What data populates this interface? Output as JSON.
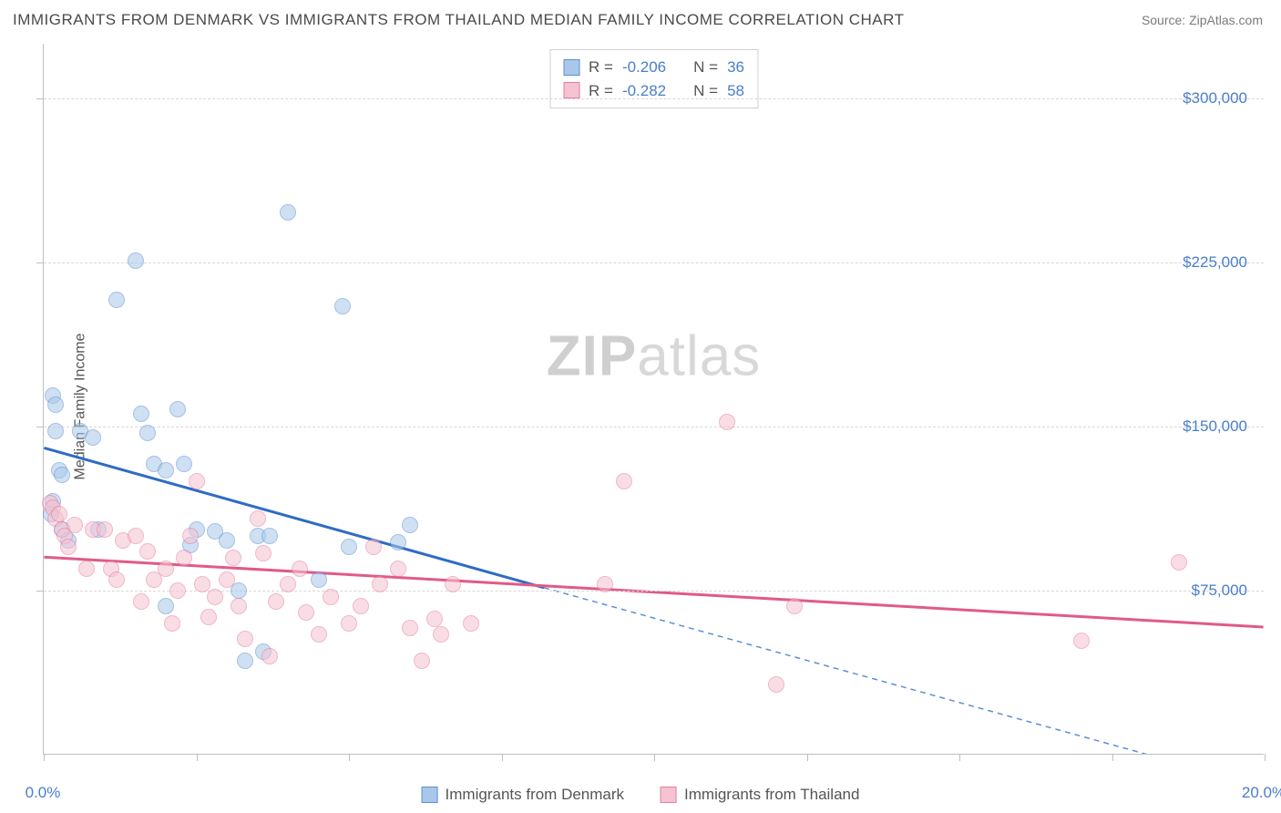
{
  "title": "IMMIGRANTS FROM DENMARK VS IMMIGRANTS FROM THAILAND MEDIAN FAMILY INCOME CORRELATION CHART",
  "source": "Source: ZipAtlas.com",
  "watermark_bold": "ZIP",
  "watermark_rest": "atlas",
  "ylabel": "Median Family Income",
  "chart": {
    "type": "scatter",
    "xlim": [
      0,
      20
    ],
    "ylim": [
      0,
      325000
    ],
    "x_ticks": [
      0,
      2.5,
      5,
      7.5,
      10,
      12.5,
      15,
      17.5,
      20
    ],
    "x_tick_labels": {
      "0": "0.0%",
      "20": "20.0%"
    },
    "y_gridlines": [
      75000,
      150000,
      225000,
      300000
    ],
    "y_tick_labels": {
      "75000": "$75,000",
      "150000": "$150,000",
      "225000": "$225,000",
      "300000": "$300,000"
    },
    "background_color": "#ffffff",
    "grid_color": "#d8d8d8",
    "axis_color": "#bfbfbf",
    "point_radius": 9,
    "point_opacity": 0.55,
    "series": [
      {
        "name": "Immigrants from Denmark",
        "fill_color": "#a9c7ea",
        "stroke_color": "#5c8fd1",
        "line_color": "#2e6cc4",
        "R": "-0.206",
        "N": "36",
        "regression": {
          "x1": 0,
          "y1": 140000,
          "x2": 8.2,
          "y2": 76000,
          "dash_x2": 20,
          "dash_y2": -15000
        },
        "points": [
          [
            0.15,
            164000
          ],
          [
            0.2,
            160000
          ],
          [
            0.2,
            148000
          ],
          [
            0.25,
            130000
          ],
          [
            0.3,
            128000
          ],
          [
            0.15,
            116000
          ],
          [
            0.3,
            103000
          ],
          [
            0.12,
            110000
          ],
          [
            0.4,
            98000
          ],
          [
            0.6,
            148000
          ],
          [
            0.8,
            145000
          ],
          [
            0.9,
            103000
          ],
          [
            1.2,
            208000
          ],
          [
            1.5,
            226000
          ],
          [
            1.6,
            156000
          ],
          [
            1.7,
            147000
          ],
          [
            1.8,
            133000
          ],
          [
            2.0,
            130000
          ],
          [
            2.0,
            68000
          ],
          [
            2.2,
            158000
          ],
          [
            2.3,
            133000
          ],
          [
            2.4,
            96000
          ],
          [
            2.5,
            103000
          ],
          [
            2.8,
            102000
          ],
          [
            3.0,
            98000
          ],
          [
            3.2,
            75000
          ],
          [
            3.3,
            43000
          ],
          [
            3.5,
            100000
          ],
          [
            3.6,
            47000
          ],
          [
            3.7,
            100000
          ],
          [
            4.0,
            248000
          ],
          [
            4.9,
            205000
          ],
          [
            4.5,
            80000
          ],
          [
            5.0,
            95000
          ],
          [
            5.8,
            97000
          ],
          [
            6.0,
            105000
          ]
        ]
      },
      {
        "name": "Immigrants from Thailand",
        "fill_color": "#f5c3d1",
        "stroke_color": "#e77b9f",
        "line_color": "#e05a88",
        "R": "-0.282",
        "N": "58",
        "regression": {
          "x1": 0,
          "y1": 90000,
          "x2": 20,
          "y2": 58000
        },
        "points": [
          [
            0.1,
            115000
          ],
          [
            0.15,
            113000
          ],
          [
            0.2,
            108000
          ],
          [
            0.25,
            110000
          ],
          [
            0.3,
            103000
          ],
          [
            0.35,
            100000
          ],
          [
            0.4,
            95000
          ],
          [
            0.5,
            105000
          ],
          [
            0.7,
            85000
          ],
          [
            0.8,
            103000
          ],
          [
            1.0,
            103000
          ],
          [
            1.1,
            85000
          ],
          [
            1.2,
            80000
          ],
          [
            1.3,
            98000
          ],
          [
            1.5,
            100000
          ],
          [
            1.6,
            70000
          ],
          [
            1.7,
            93000
          ],
          [
            1.8,
            80000
          ],
          [
            2.0,
            85000
          ],
          [
            2.1,
            60000
          ],
          [
            2.2,
            75000
          ],
          [
            2.3,
            90000
          ],
          [
            2.4,
            100000
          ],
          [
            2.5,
            125000
          ],
          [
            2.6,
            78000
          ],
          [
            2.7,
            63000
          ],
          [
            2.8,
            72000
          ],
          [
            3.0,
            80000
          ],
          [
            3.1,
            90000
          ],
          [
            3.2,
            68000
          ],
          [
            3.3,
            53000
          ],
          [
            3.5,
            108000
          ],
          [
            3.6,
            92000
          ],
          [
            3.7,
            45000
          ],
          [
            3.8,
            70000
          ],
          [
            4.0,
            78000
          ],
          [
            4.2,
            85000
          ],
          [
            4.3,
            65000
          ],
          [
            4.5,
            55000
          ],
          [
            4.7,
            72000
          ],
          [
            5.0,
            60000
          ],
          [
            5.2,
            68000
          ],
          [
            5.4,
            95000
          ],
          [
            5.5,
            78000
          ],
          [
            5.8,
            85000
          ],
          [
            6.0,
            58000
          ],
          [
            6.2,
            43000
          ],
          [
            6.4,
            62000
          ],
          [
            6.5,
            55000
          ],
          [
            6.7,
            78000
          ],
          [
            7.0,
            60000
          ],
          [
            9.2,
            78000
          ],
          [
            9.5,
            125000
          ],
          [
            11.2,
            152000
          ],
          [
            12.0,
            32000
          ],
          [
            12.3,
            68000
          ],
          [
            17.0,
            52000
          ],
          [
            18.6,
            88000
          ]
        ]
      }
    ]
  },
  "legend_labels": {
    "R_prefix": "R = ",
    "N_prefix": "N = "
  }
}
